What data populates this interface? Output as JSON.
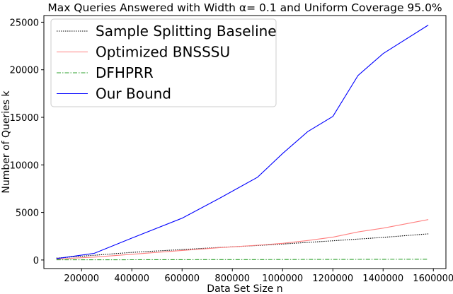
{
  "chart_data": {
    "type": "line",
    "title": "Max Queries Answered with Width α= 0.1 and Uniform Coverage 95.0%",
    "xlabel": "Data Set Size n",
    "ylabel": "Number of Queries k",
    "xlim": [
      50000,
      1650000
    ],
    "ylim": [
      -900,
      25700
    ],
    "xticks": [
      200000,
      400000,
      600000,
      800000,
      1000000,
      1200000,
      1400000,
      1600000
    ],
    "yticks": [
      0,
      5000,
      10000,
      15000,
      20000,
      25000
    ],
    "grid": false,
    "legend_position": "top-left",
    "x": [
      100000,
      250000,
      400000,
      600000,
      750000,
      900000,
      1000000,
      1100000,
      1200000,
      1300000,
      1400000,
      1580000
    ],
    "series": [
      {
        "name": "Sample Splitting Baseline",
        "color": "#000000",
        "dash": "dotted",
        "values": [
          200,
          500,
          800,
          1100,
          1320,
          1520,
          1680,
          1850,
          2020,
          2200,
          2380,
          2750
        ]
      },
      {
        "name": "Optimized BNSSSU",
        "color": "#ff7f7f",
        "dash": "solid",
        "values": [
          100,
          300,
          600,
          1000,
          1300,
          1550,
          1750,
          2050,
          2400,
          2950,
          3350,
          4250
        ]
      },
      {
        "name": "DFHPRR",
        "color": "#2ca02c",
        "dash": "dashdot",
        "values": [
          20,
          25,
          30,
          35,
          40,
          45,
          50,
          55,
          60,
          65,
          70,
          80
        ]
      },
      {
        "name": "Our Bound",
        "color": "#0000ff",
        "dash": "solid",
        "values": [
          150,
          700,
          2300,
          4400,
          6500,
          8700,
          11200,
          13500,
          15100,
          19400,
          21700,
          24700
        ]
      }
    ]
  }
}
